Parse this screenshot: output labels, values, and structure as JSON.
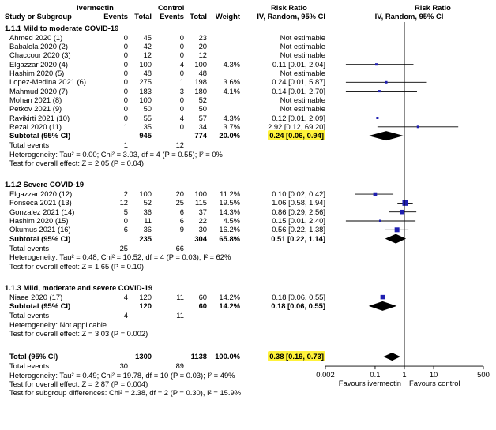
{
  "header": {
    "group1": "Ivermectin",
    "group2": "Control",
    "rr_left": "Risk Ratio",
    "rr_right": "Risk Ratio",
    "study": "Study or Subgroup",
    "events1": "Events",
    "total1": "Total",
    "events2": "Events",
    "total2": "Total",
    "weight": "Weight",
    "method_left": "IV, Random, 95% CI",
    "method_right": "IV, Random, 95% CI"
  },
  "chart_data": {
    "type": "forest",
    "xscale": "log",
    "xlim": [
      0.002,
      500
    ],
    "ticks": [
      "0.002",
      "0.1",
      "1",
      "10",
      "500"
    ],
    "tick_values": [
      0.002,
      0.1,
      1,
      10,
      500
    ],
    "axis_label_left": "Favours ivermectin",
    "axis_label_right": "Favours control",
    "subgroups": [
      {
        "title": "1.1.1 Mild to moderate COVID-19",
        "studies": [
          {
            "name": "Ahmed 2020 (1)",
            "e1": "0",
            "n1": "45",
            "e2": "0",
            "n2": "23",
            "weight": "",
            "ci_text": "Not estimable",
            "rr": null,
            "lo": null,
            "hi": null
          },
          {
            "name": "Babalola 2020 (2)",
            "e1": "0",
            "n1": "42",
            "e2": "0",
            "n2": "20",
            "weight": "",
            "ci_text": "Not estimable",
            "rr": null,
            "lo": null,
            "hi": null
          },
          {
            "name": "Chaccour 2020 (3)",
            "e1": "0",
            "n1": "12",
            "e2": "0",
            "n2": "12",
            "weight": "",
            "ci_text": "Not estimable",
            "rr": null,
            "lo": null,
            "hi": null
          },
          {
            "name": "Elgazzar 2020 (4)",
            "e1": "0",
            "n1": "100",
            "e2": "4",
            "n2": "100",
            "weight": "4.3%",
            "ci_text": "0.11 [0.01, 2.04]",
            "rr": 0.11,
            "lo": 0.01,
            "hi": 2.04
          },
          {
            "name": "Hashim 2020 (5)",
            "e1": "0",
            "n1": "48",
            "e2": "0",
            "n2": "48",
            "weight": "",
            "ci_text": "Not estimable",
            "rr": null,
            "lo": null,
            "hi": null
          },
          {
            "name": "Lopez-Medina 2021 (6)",
            "e1": "0",
            "n1": "275",
            "e2": "1",
            "n2": "198",
            "weight": "3.6%",
            "ci_text": "0.24 [0.01, 5.87]",
            "rr": 0.24,
            "lo": 0.01,
            "hi": 5.87
          },
          {
            "name": "Mahmud 2020 (7)",
            "e1": "0",
            "n1": "183",
            "e2": "3",
            "n2": "180",
            "weight": "4.1%",
            "ci_text": "0.14 [0.01, 2.70]",
            "rr": 0.14,
            "lo": 0.01,
            "hi": 2.7
          },
          {
            "name": "Mohan 2021 (8)",
            "e1": "0",
            "n1": "100",
            "e2": "0",
            "n2": "52",
            "weight": "",
            "ci_text": "Not estimable",
            "rr": null,
            "lo": null,
            "hi": null
          },
          {
            "name": "Petkov 2021 (9)",
            "e1": "0",
            "n1": "50",
            "e2": "0",
            "n2": "50",
            "weight": "",
            "ci_text": "Not estimable",
            "rr": null,
            "lo": null,
            "hi": null
          },
          {
            "name": "Ravikirti 2021 (10)",
            "e1": "0",
            "n1": "55",
            "e2": "4",
            "n2": "57",
            "weight": "4.3%",
            "ci_text": "0.12 [0.01, 2.09]",
            "rr": 0.12,
            "lo": 0.01,
            "hi": 2.09
          },
          {
            "name": "Rezai 2020 (11)",
            "e1": "1",
            "n1": "35",
            "e2": "0",
            "n2": "34",
            "weight": "3.7%",
            "ci_text": "2.92 [0.12, 69.20]",
            "rr": 2.92,
            "lo": 0.12,
            "hi": 69.2
          }
        ],
        "subtotal": {
          "label": "Subtotal (95% CI)",
          "n1": "945",
          "n2": "774",
          "weight": "20.0%",
          "ci_text": "0.24 [0.06, 0.94]",
          "rr": 0.24,
          "lo": 0.06,
          "hi": 0.94,
          "highlight": true
        },
        "events_label": "Total events",
        "events1": "1",
        "events2": "12",
        "heterogeneity": "Heterogeneity: Tau² = 0.00; Chi² = 3.03, df = 4 (P = 0.55); I² = 0%",
        "overall": "Test for overall effect: Z = 2.05 (P = 0.04)"
      },
      {
        "title": "1.1.2 Severe COVID-19",
        "studies": [
          {
            "name": "Elgazzar 2020 (12)",
            "e1": "2",
            "n1": "100",
            "e2": "20",
            "n2": "100",
            "weight": "11.2%",
            "ci_text": "0.10 [0.02, 0.42]",
            "rr": 0.1,
            "lo": 0.02,
            "hi": 0.42
          },
          {
            "name": "Fonseca 2021 (13)",
            "e1": "12",
            "n1": "52",
            "e2": "25",
            "n2": "115",
            "weight": "19.5%",
            "ci_text": "1.06 [0.58, 1.94]",
            "rr": 1.06,
            "lo": 0.58,
            "hi": 1.94
          },
          {
            "name": "Gonzalez 2021 (14)",
            "e1": "5",
            "n1": "36",
            "e2": "6",
            "n2": "37",
            "weight": "14.3%",
            "ci_text": "0.86 [0.29, 2.56]",
            "rr": 0.86,
            "lo": 0.29,
            "hi": 2.56
          },
          {
            "name": "Hashim 2020 (15)",
            "e1": "0",
            "n1": "11",
            "e2": "6",
            "n2": "22",
            "weight": "4.5%",
            "ci_text": "0.15 [0.01, 2.40]",
            "rr": 0.15,
            "lo": 0.01,
            "hi": 2.4
          },
          {
            "name": "Okumus 2021 (16)",
            "e1": "6",
            "n1": "36",
            "e2": "9",
            "n2": "30",
            "weight": "16.2%",
            "ci_text": "0.56 [0.22, 1.38]",
            "rr": 0.56,
            "lo": 0.22,
            "hi": 1.38
          }
        ],
        "subtotal": {
          "label": "Subtotal (95% CI)",
          "n1": "235",
          "n2": "304",
          "weight": "65.8%",
          "ci_text": "0.51 [0.22, 1.14]",
          "rr": 0.51,
          "lo": 0.22,
          "hi": 1.14,
          "highlight": false
        },
        "events_label": "Total events",
        "events1": "25",
        "events2": "66",
        "heterogeneity": "Heterogeneity: Tau² = 0.48; Chi² = 10.52, df = 4 (P = 0.03); I² = 62%",
        "overall": "Test for overall effect: Z = 1.65 (P = 0.10)"
      },
      {
        "title": "1.1.3 Mild, moderate and severe COVID-19",
        "studies": [
          {
            "name": "Niaee 2020 (17)",
            "e1": "4",
            "n1": "120",
            "e2": "11",
            "n2": "60",
            "weight": "14.2%",
            "ci_text": "0.18 [0.06, 0.55]",
            "rr": 0.18,
            "lo": 0.06,
            "hi": 0.55
          }
        ],
        "subtotal": {
          "label": "Subtotal (95% CI)",
          "n1": "120",
          "n2": "60",
          "weight": "14.2%",
          "ci_text": "0.18 [0.06, 0.55]",
          "rr": 0.18,
          "lo": 0.06,
          "hi": 0.55,
          "highlight": false
        },
        "events_label": "Total events",
        "events1": "4",
        "events2": "11",
        "heterogeneity": "Heterogeneity: Not applicable",
        "overall": "Test for overall effect: Z = 3.03 (P = 0.002)"
      }
    ],
    "total": {
      "label": "Total (95% CI)",
      "n1": "1300",
      "n2": "1138",
      "weight": "100.0%",
      "ci_text": "0.38 [0.19, 0.73]",
      "rr": 0.38,
      "lo": 0.19,
      "hi": 0.73,
      "highlight": true,
      "events_label": "Total events",
      "events1": "30",
      "events2": "89",
      "heterogeneity": "Heterogeneity: Tau² = 0.49; Chi² = 19.78, df = 10 (P = 0.03); I² = 49%",
      "overall": "Test for overall effect: Z = 2.87 (P = 0.004)",
      "subgroup_diff": "Test for subgroup differences: Chi² = 2.38, df = 2 (P = 0.30), I² = 15.9%"
    }
  },
  "colors": {
    "marker": "#1f1fb0",
    "highlight": "#fff23a",
    "line": "#000000"
  }
}
